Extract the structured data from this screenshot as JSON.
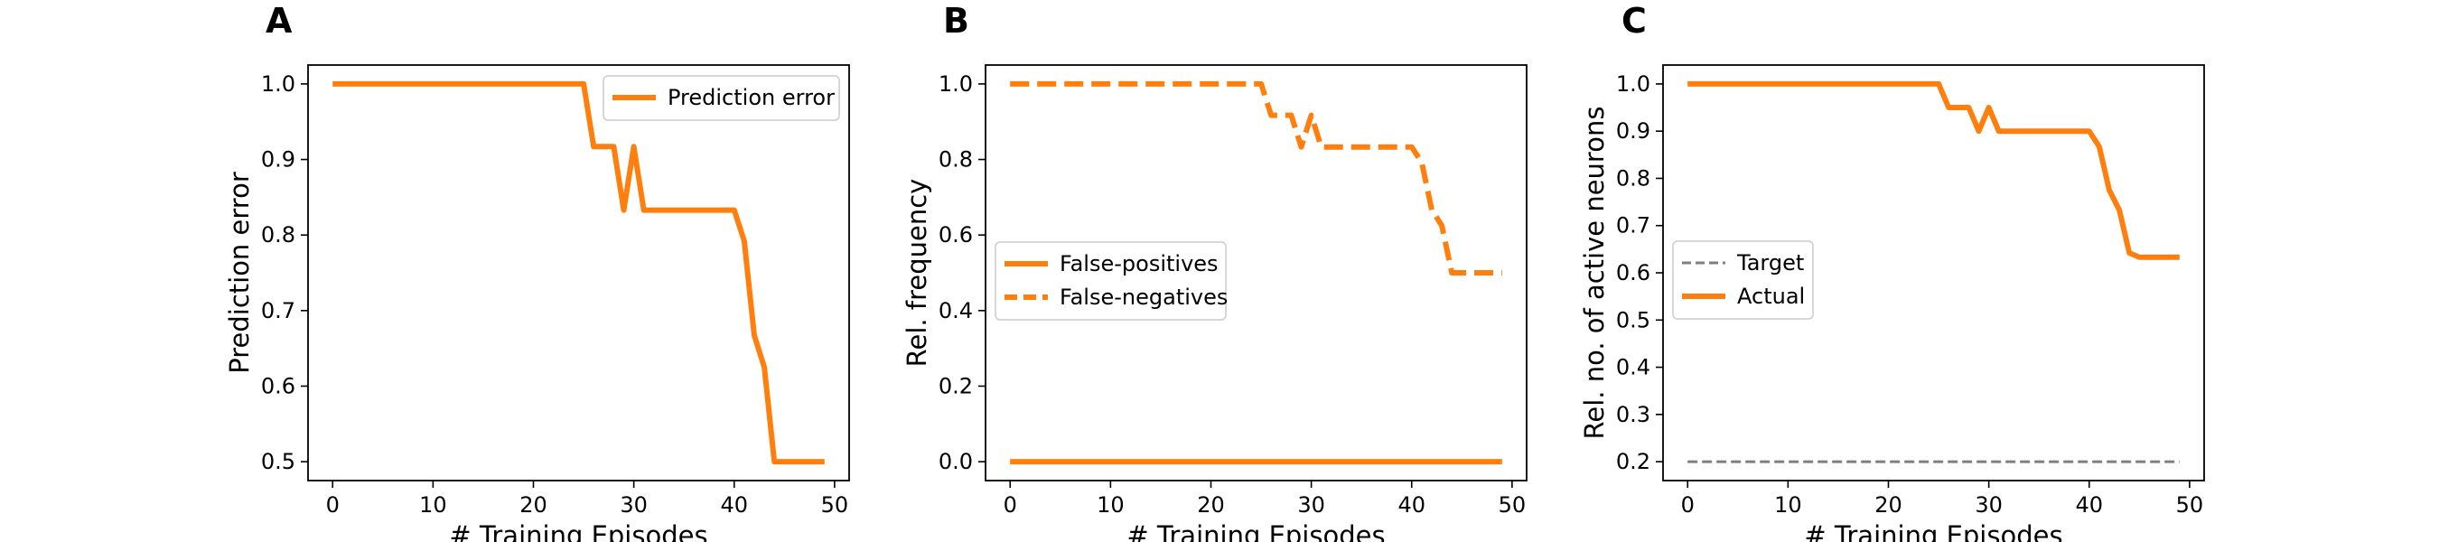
{
  "figure": {
    "panels": [
      {
        "letter": "A"
      },
      {
        "letter": "B"
      },
      {
        "letter": "C"
      }
    ]
  },
  "chart_data": [
    {
      "type": "line",
      "panel": "A",
      "xlabel": "# Training Episodes",
      "ylabel": "Prediction error",
      "xlim": [
        -2.45,
        51.45
      ],
      "ylim": [
        0.475,
        1.025
      ],
      "xticks": [
        0,
        10,
        20,
        30,
        40,
        50
      ],
      "yticks": [
        0.5,
        0.6,
        0.7,
        0.8,
        0.9,
        1.0
      ],
      "ytick_labels": [
        "0.5",
        "0.6",
        "0.7",
        "0.8",
        "0.9",
        "1.0"
      ],
      "grid": false,
      "legend_position": "upper right",
      "series": [
        {
          "name": "Prediction error",
          "color": "#ff7f0e",
          "style": "solid",
          "x": [
            0,
            1,
            2,
            3,
            4,
            5,
            6,
            7,
            8,
            9,
            10,
            11,
            12,
            13,
            14,
            15,
            16,
            17,
            18,
            19,
            20,
            21,
            22,
            23,
            24,
            25,
            26,
            27,
            28,
            29,
            30,
            31,
            32,
            33,
            34,
            35,
            36,
            37,
            38,
            39,
            40,
            41,
            42,
            43,
            44,
            45,
            46,
            47,
            48,
            49
          ],
          "values": [
            1.0,
            1.0,
            1.0,
            1.0,
            1.0,
            1.0,
            1.0,
            1.0,
            1.0,
            1.0,
            1.0,
            1.0,
            1.0,
            1.0,
            1.0,
            1.0,
            1.0,
            1.0,
            1.0,
            1.0,
            1.0,
            1.0,
            1.0,
            1.0,
            1.0,
            1.0,
            0.917,
            0.917,
            0.917,
            0.833,
            0.917,
            0.833,
            0.833,
            0.833,
            0.833,
            0.833,
            0.833,
            0.833,
            0.833,
            0.833,
            0.833,
            0.792,
            0.667,
            0.625,
            0.5,
            0.5,
            0.5,
            0.5,
            0.5,
            0.5
          ]
        }
      ]
    },
    {
      "type": "line",
      "panel": "B",
      "xlabel": "# Training Episodes",
      "ylabel": "Rel. frequency",
      "xlim": [
        -2.45,
        51.45
      ],
      "ylim": [
        -0.05,
        1.05
      ],
      "xticks": [
        0,
        10,
        20,
        30,
        40,
        50
      ],
      "yticks": [
        0.0,
        0.2,
        0.4,
        0.6,
        0.8,
        1.0
      ],
      "ytick_labels": [
        "0.0",
        "0.2",
        "0.4",
        "0.6",
        "0.8",
        "1.0"
      ],
      "grid": false,
      "legend_position": "center left",
      "series": [
        {
          "name": "False-positives",
          "color": "#ff7f0e",
          "style": "solid",
          "x": [
            0,
            1,
            2,
            3,
            4,
            5,
            6,
            7,
            8,
            9,
            10,
            11,
            12,
            13,
            14,
            15,
            16,
            17,
            18,
            19,
            20,
            21,
            22,
            23,
            24,
            25,
            26,
            27,
            28,
            29,
            30,
            31,
            32,
            33,
            34,
            35,
            36,
            37,
            38,
            39,
            40,
            41,
            42,
            43,
            44,
            45,
            46,
            47,
            48,
            49
          ],
          "values": [
            0,
            0,
            0,
            0,
            0,
            0,
            0,
            0,
            0,
            0,
            0,
            0,
            0,
            0,
            0,
            0,
            0,
            0,
            0,
            0,
            0,
            0,
            0,
            0,
            0,
            0,
            0,
            0,
            0,
            0,
            0,
            0,
            0,
            0,
            0,
            0,
            0,
            0,
            0,
            0,
            0,
            0,
            0,
            0,
            0,
            0,
            0,
            0,
            0,
            0
          ]
        },
        {
          "name": "False-negatives",
          "color": "#ff7f0e",
          "style": "dashed",
          "x": [
            0,
            1,
            2,
            3,
            4,
            5,
            6,
            7,
            8,
            9,
            10,
            11,
            12,
            13,
            14,
            15,
            16,
            17,
            18,
            19,
            20,
            21,
            22,
            23,
            24,
            25,
            26,
            27,
            28,
            29,
            30,
            31,
            32,
            33,
            34,
            35,
            36,
            37,
            38,
            39,
            40,
            41,
            42,
            43,
            44,
            45,
            46,
            47,
            48,
            49
          ],
          "values": [
            1.0,
            1.0,
            1.0,
            1.0,
            1.0,
            1.0,
            1.0,
            1.0,
            1.0,
            1.0,
            1.0,
            1.0,
            1.0,
            1.0,
            1.0,
            1.0,
            1.0,
            1.0,
            1.0,
            1.0,
            1.0,
            1.0,
            1.0,
            1.0,
            1.0,
            1.0,
            0.917,
            0.917,
            0.917,
            0.833,
            0.917,
            0.833,
            0.833,
            0.833,
            0.833,
            0.833,
            0.833,
            0.833,
            0.833,
            0.833,
            0.833,
            0.792,
            0.667,
            0.625,
            0.5,
            0.5,
            0.5,
            0.5,
            0.5,
            0.5
          ]
        }
      ]
    },
    {
      "type": "line",
      "panel": "C",
      "xlabel": "# Training Episodes",
      "ylabel": "Rel. no. of active neurons",
      "xlim": [
        -2.45,
        51.45
      ],
      "ylim": [
        0.16,
        1.04
      ],
      "xticks": [
        0,
        10,
        20,
        30,
        40,
        50
      ],
      "yticks": [
        0.2,
        0.3,
        0.4,
        0.5,
        0.6,
        0.7,
        0.8,
        0.9,
        1.0
      ],
      "ytick_labels": [
        "0.2",
        "0.3",
        "0.4",
        "0.5",
        "0.6",
        "0.7",
        "0.8",
        "0.9",
        "1.0"
      ],
      "grid": false,
      "legend_position": "center left",
      "series": [
        {
          "name": "Target",
          "color": "#7f7f7f",
          "style": "dashed-thin",
          "x": [
            0,
            49
          ],
          "values": [
            0.2,
            0.2
          ]
        },
        {
          "name": "Actual",
          "color": "#ff7f0e",
          "style": "solid",
          "x": [
            0,
            1,
            2,
            3,
            4,
            5,
            6,
            7,
            8,
            9,
            10,
            11,
            12,
            13,
            14,
            15,
            16,
            17,
            18,
            19,
            20,
            21,
            22,
            23,
            24,
            25,
            26,
            27,
            28,
            29,
            30,
            31,
            32,
            33,
            34,
            35,
            36,
            37,
            38,
            39,
            40,
            41,
            42,
            43,
            44,
            45,
            46,
            47,
            48,
            49
          ],
          "values": [
            1.0,
            1.0,
            1.0,
            1.0,
            1.0,
            1.0,
            1.0,
            1.0,
            1.0,
            1.0,
            1.0,
            1.0,
            1.0,
            1.0,
            1.0,
            1.0,
            1.0,
            1.0,
            1.0,
            1.0,
            1.0,
            1.0,
            1.0,
            1.0,
            1.0,
            1.0,
            0.95,
            0.95,
            0.95,
            0.9,
            0.95,
            0.9,
            0.9,
            0.9,
            0.9,
            0.9,
            0.9,
            0.9,
            0.9,
            0.9,
            0.9,
            0.867,
            0.775,
            0.733,
            0.642,
            0.633,
            0.633,
            0.633,
            0.633,
            0.633
          ]
        }
      ]
    }
  ]
}
